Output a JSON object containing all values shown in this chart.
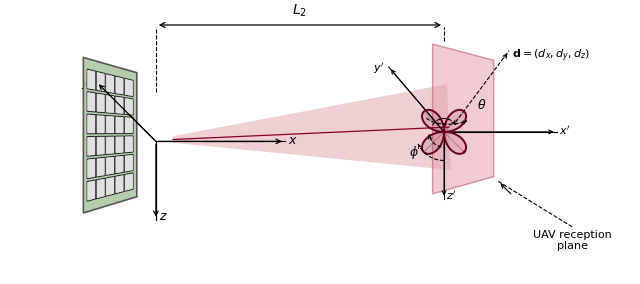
{
  "bg_color": "#ffffff",
  "ris_panel_color": "#a8c8a0",
  "ris_panel_edge_color": "#444444",
  "uav_plane_color": "#e8a0b0",
  "uav_plane_alpha": 0.55,
  "beam_color": "#d06070",
  "beam_alpha": 0.3,
  "flower_color": "#6b0020",
  "figsize": [
    6.4,
    2.84
  ],
  "dpi": 100
}
